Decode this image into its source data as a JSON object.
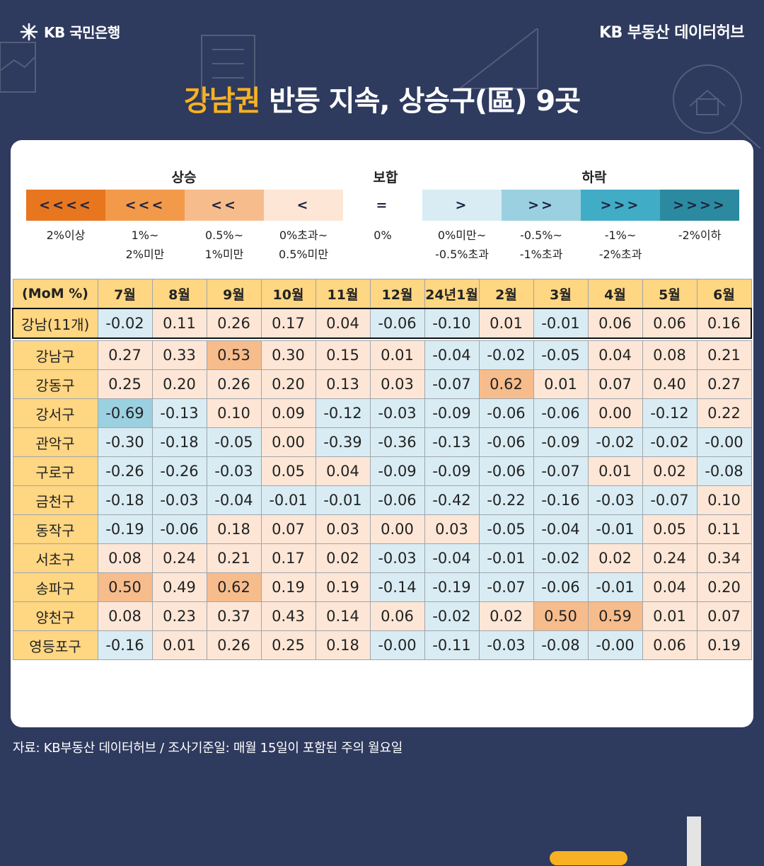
{
  "header": {
    "bank_logo": "KB 국민은행",
    "hub_name": "KB 부동산  데이터허브"
  },
  "title": {
    "accent": "강남권",
    "rest": " 반등 지속, 상승구(區) 9곳"
  },
  "legend": {
    "groups": {
      "rise": "상승",
      "flat": "보합",
      "fall": "하락"
    },
    "items": [
      {
        "symbol": "<<<<",
        "desc": "2%이상",
        "color": "#e8761f"
      },
      {
        "symbol": "<<<",
        "desc": "1%~\n2%미만",
        "color": "#f39a4a"
      },
      {
        "symbol": "<<",
        "desc": "0.5%~\n1%미만",
        "color": "#f7bc8c"
      },
      {
        "symbol": "<",
        "desc": "0%초과~\n0.5%미만",
        "color": "#fde6d6"
      },
      {
        "symbol": "=",
        "desc": "0%",
        "color": "#ffffff"
      },
      {
        "symbol": ">",
        "desc": "0%미만~\n-0.5%초과",
        "color": "#d9ecf3"
      },
      {
        "symbol": ">>",
        "desc": "-0.5%~\n-1%초과",
        "color": "#9bd0e0"
      },
      {
        "symbol": ">>>",
        "desc": "-1%~\n-2%초과",
        "color": "#40acc6"
      },
      {
        "symbol": ">>>>",
        "desc": "-2%이하",
        "color": "#2b8aa0"
      }
    ]
  },
  "table": {
    "corner": "(MoM %)",
    "columns": [
      "7월",
      "8월",
      "9월",
      "10월",
      "11월",
      "12월",
      "24년1월",
      "2월",
      "3월",
      "4월",
      "5월",
      "6월"
    ],
    "total": {
      "name": "강남(11개)",
      "values": [
        "-0.02",
        "0.11",
        "0.26",
        "0.17",
        "0.04",
        "-0.06",
        "-0.10",
        "0.01",
        "-0.01",
        "0.06",
        "0.06",
        "0.16"
      ]
    },
    "rows": [
      {
        "name": "강남구",
        "values": [
          "0.27",
          "0.33",
          "0.53",
          "0.30",
          "0.15",
          "0.01",
          "-0.04",
          "-0.02",
          "-0.05",
          "0.04",
          "0.08",
          "0.21"
        ]
      },
      {
        "name": "강동구",
        "values": [
          "0.25",
          "0.20",
          "0.26",
          "0.20",
          "0.13",
          "0.03",
          "-0.07",
          "0.62",
          "0.01",
          "0.07",
          "0.40",
          "0.27"
        ]
      },
      {
        "name": "강서구",
        "values": [
          "-0.69",
          "-0.13",
          "0.10",
          "0.09",
          "-0.12",
          "-0.03",
          "-0.09",
          "-0.06",
          "-0.06",
          "0.00",
          "-0.12",
          "0.22"
        ]
      },
      {
        "name": "관악구",
        "values": [
          "-0.30",
          "-0.18",
          "-0.05",
          "0.00",
          "-0.39",
          "-0.36",
          "-0.13",
          "-0.06",
          "-0.09",
          "-0.02",
          "-0.02",
          "-0.00"
        ]
      },
      {
        "name": "구로구",
        "values": [
          "-0.26",
          "-0.26",
          "-0.03",
          "0.05",
          "0.04",
          "-0.09",
          "-0.09",
          "-0.06",
          "-0.07",
          "0.01",
          "0.02",
          "-0.08"
        ]
      },
      {
        "name": "금천구",
        "values": [
          "-0.18",
          "-0.03",
          "-0.04",
          "-0.01",
          "-0.01",
          "-0.06",
          "-0.42",
          "-0.22",
          "-0.16",
          "-0.03",
          "-0.07",
          "0.10"
        ]
      },
      {
        "name": "동작구",
        "values": [
          "-0.19",
          "-0.06",
          "0.18",
          "0.07",
          "0.03",
          "0.00",
          "0.03",
          "-0.05",
          "-0.04",
          "-0.01",
          "0.05",
          "0.11"
        ]
      },
      {
        "name": "서초구",
        "values": [
          "0.08",
          "0.24",
          "0.21",
          "0.17",
          "0.02",
          "-0.03",
          "-0.04",
          "-0.01",
          "-0.02",
          "0.02",
          "0.24",
          "0.34"
        ]
      },
      {
        "name": "송파구",
        "values": [
          "0.50",
          "0.49",
          "0.62",
          "0.19",
          "0.19",
          "-0.14",
          "-0.19",
          "-0.07",
          "-0.06",
          "-0.01",
          "0.04",
          "0.20"
        ]
      },
      {
        "name": "양천구",
        "values": [
          "0.08",
          "0.23",
          "0.37",
          "0.43",
          "0.14",
          "0.06",
          "-0.02",
          "0.02",
          "0.50",
          "0.59",
          "0.01",
          "0.07"
        ]
      },
      {
        "name": "영등포구",
        "values": [
          "-0.16",
          "0.01",
          "0.26",
          "0.25",
          "0.18",
          "-0.00",
          "-0.11",
          "-0.03",
          "-0.08",
          "-0.00",
          "0.06",
          "0.19"
        ]
      }
    ]
  },
  "footer": "자료: KB부동산 데이터허브 / 조사기준일: 매월 15일이 포함된 주의 월요일"
}
